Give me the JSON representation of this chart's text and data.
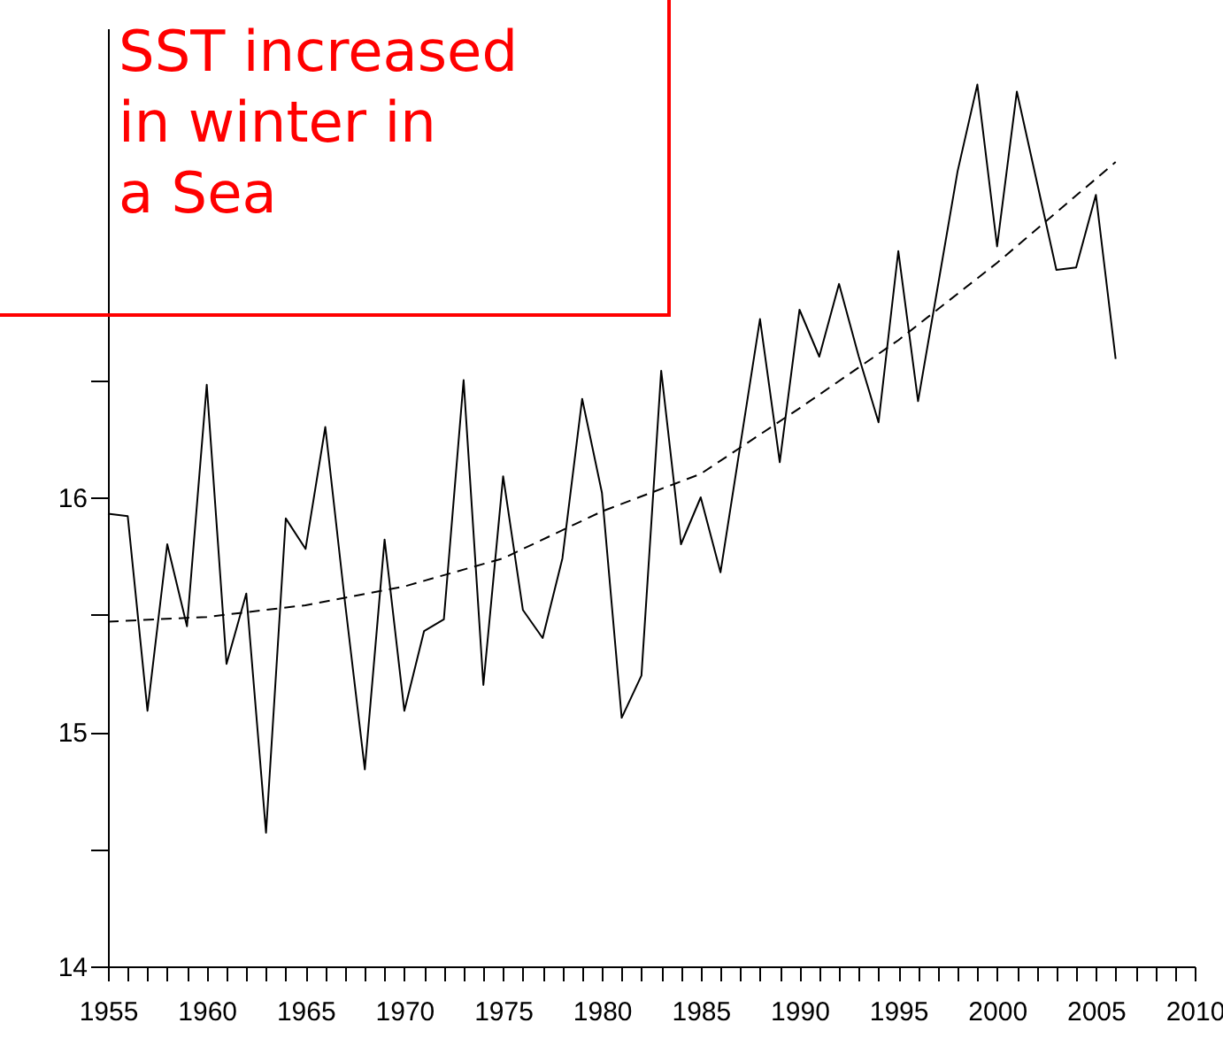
{
  "chart_data": {
    "type": "line",
    "annotations": [
      "SST increased",
      "in winter in",
      "a Sea"
    ],
    "x": [
      1955,
      1956,
      1957,
      1958,
      1959,
      1960,
      1961,
      1962,
      1963,
      1964,
      1965,
      1966,
      1967,
      1968,
      1969,
      1970,
      1971,
      1972,
      1973,
      1974,
      1975,
      1976,
      1977,
      1978,
      1979,
      1980,
      1981,
      1982,
      1983,
      1984,
      1985,
      1986,
      1987,
      1988,
      1989,
      1990,
      1991,
      1992,
      1993,
      1994,
      1995,
      1996,
      1997,
      1998,
      1999,
      2000,
      2001,
      2002,
      2003,
      2004,
      2005,
      2006
    ],
    "series": [
      {
        "color": "#000000",
        "line_style": "solid",
        "values": [
          15.93,
          15.92,
          15.09,
          15.8,
          15.45,
          16.48,
          15.29,
          15.59,
          14.57,
          15.91,
          15.78,
          16.3,
          15.55,
          14.84,
          15.82,
          15.09,
          15.43,
          15.48,
          16.5,
          15.2,
          16.09,
          15.52,
          15.4,
          15.74,
          16.42,
          16.02,
          15.06,
          15.24,
          16.54,
          15.8,
          16.0,
          15.68,
          16.22,
          16.76,
          16.15,
          16.8,
          16.6,
          16.91,
          16.6,
          16.32,
          17.05,
          16.41,
          16.9,
          17.39,
          17.76,
          17.07,
          17.73,
          17.35,
          16.97,
          16.98,
          17.29,
          16.59
        ]
      },
      {
        "type": "line",
        "color": "#000000",
        "line_style": "dashed",
        "x": [
          1955,
          1960,
          1965,
          1970,
          1975,
          1980,
          1985,
          1990,
          1995,
          2000,
          2006
        ],
        "values": [
          15.47,
          15.49,
          15.54,
          15.62,
          15.74,
          15.94,
          16.1,
          16.38,
          16.67,
          17.0,
          17.43
        ]
      }
    ],
    "xlim": [
      1955,
      2010
    ],
    "xticks": [
      1955,
      {
        "value": 1956,
        "label": null
      },
      {
        "value": 1957,
        "label": null
      },
      {
        "value": 1958,
        "label": null
      },
      {
        "value": 1959,
        "label": null
      },
      1960,
      {
        "value": 1961,
        "label": null
      },
      {
        "value": 1962,
        "label": null
      },
      {
        "value": 1963,
        "label": null
      },
      {
        "value": 1964,
        "label": null
      },
      1965,
      {
        "value": 1966,
        "label": null
      },
      {
        "value": 1967,
        "label": null
      },
      {
        "value": 1968,
        "label": null
      },
      {
        "value": 1969,
        "label": null
      },
      1970,
      {
        "value": 1971,
        "label": null
      },
      {
        "value": 1972,
        "label": null
      },
      {
        "value": 1973,
        "label": null
      },
      {
        "value": 1974,
        "label": null
      },
      1975,
      {
        "value": 1976,
        "label": null
      },
      {
        "value": 1977,
        "label": null
      },
      {
        "value": 1978,
        "label": null
      },
      {
        "value": 1979,
        "label": null
      },
      1980,
      {
        "value": 1981,
        "label": null
      },
      {
        "value": 1982,
        "label": null
      },
      {
        "value": 1983,
        "label": null
      },
      {
        "value": 1984,
        "label": null
      },
      1985,
      {
        "value": 1986,
        "label": null
      },
      {
        "value": 1987,
        "label": null
      },
      {
        "value": 1988,
        "label": null
      },
      {
        "value": 1989,
        "label": null
      },
      1990,
      {
        "value": 1991,
        "label": null
      },
      {
        "value": 1992,
        "label": null
      },
      {
        "value": 1993,
        "label": null
      },
      {
        "value": 1994,
        "label": null
      },
      1995,
      {
        "value": 1996,
        "label": null
      },
      {
        "value": 1997,
        "label": null
      },
      {
        "value": 1998,
        "label": null
      },
      {
        "value": 1999,
        "label": null
      },
      2000,
      {
        "value": 2001,
        "label": null
      },
      {
        "value": 2002,
        "label": null
      },
      {
        "value": 2003,
        "label": null
      },
      {
        "value": 2004,
        "label": null
      },
      2005,
      {
        "value": 2006,
        "label": null
      },
      {
        "value": 2007,
        "label": null
      },
      {
        "value": 2008,
        "label": null
      },
      {
        "value": 2009,
        "label": null
      },
      2010
    ],
    "ylim": [
      14,
      18
    ],
    "yticks": [
      14,
      {
        "value": 14.5,
        "label": null
      },
      15,
      {
        "value": 15.5,
        "label": null
      },
      16,
      {
        "value": 16.5,
        "label": null
      }
    ],
    "grid": false,
    "marker": "none"
  }
}
